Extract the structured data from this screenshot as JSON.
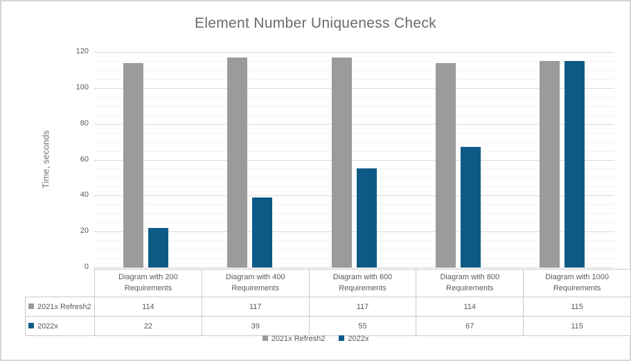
{
  "title": "Element Number Uniqueness Check",
  "colors": {
    "series1": "#9b9b9b",
    "series2": "#0e5a87",
    "grid_major": "#d9d9d9",
    "grid_minor": "#f2f2f2",
    "text": "#595959",
    "title_text": "#6a6a6a",
    "table_border": "#c9c9c9",
    "frame_border": "#d6d6d6"
  },
  "chart_data": {
    "type": "bar",
    "title": "Element Number Uniqueness Check",
    "xlabel": "",
    "ylabel": "Time, seconds",
    "ylim": [
      0,
      120
    ],
    "y_major_ticks": [
      0,
      20,
      40,
      60,
      80,
      100,
      120
    ],
    "y_minor_unit": 5,
    "grid": true,
    "legend_position": "bottom",
    "data_table_shown": true,
    "categories": [
      "Diagram with 200 Requirements",
      "Diagram with 400 Requirements",
      "Diagram with 600 Requirements",
      "Diagram with 800 Requirements",
      "Diagram with 1000 Requirements"
    ],
    "series": [
      {
        "name": "2021x Refresh2",
        "color": "#9b9b9b",
        "values": [
          114,
          117,
          117,
          114,
          115
        ]
      },
      {
        "name": "2022x",
        "color": "#0e5a87",
        "values": [
          22,
          39,
          55,
          67,
          115
        ]
      }
    ]
  }
}
